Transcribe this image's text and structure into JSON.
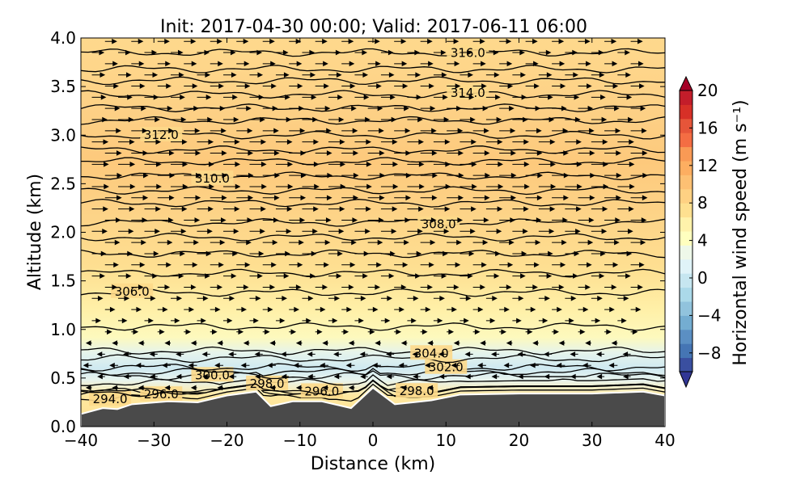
{
  "chart_data": {
    "type": "heatmap",
    "title": "Init: 2017-04-30 00:00; Valid: 2017-06-11 06:00",
    "xlabel": "Distance (km)",
    "ylabel": "Altitude (km)",
    "xlim": [
      -40,
      40
    ],
    "ylim": [
      0.0,
      4.0
    ],
    "xticks": [
      "−40",
      "−30",
      "−20",
      "−10",
      "0",
      "10",
      "20",
      "30",
      "40"
    ],
    "xtick_values": [
      -40,
      -30,
      -20,
      -10,
      0,
      10,
      20,
      30,
      40
    ],
    "yticks": [
      "0.0",
      "0.5",
      "1.0",
      "1.5",
      "2.0",
      "2.5",
      "3.0",
      "3.5",
      "4.0"
    ],
    "ytick_values": [
      0,
      0.5,
      1.0,
      1.5,
      2.0,
      2.5,
      3.0,
      3.5,
      4.0
    ],
    "colorbar": {
      "label": "Horizontal wind speed (m s⁻¹)",
      "range": [
        -10,
        20
      ],
      "extend": "both",
      "ticks": [
        "20",
        "16",
        "12",
        "8",
        "4",
        "0",
        "−4",
        "−8"
      ],
      "tick_values": [
        20,
        16,
        12,
        8,
        4,
        0,
        -4,
        -8
      ],
      "colors": [
        "#313695",
        "#3a4fa0",
        "#4575b4",
        "#5b8fc3",
        "#74add1",
        "#91c3dd",
        "#abd9e9",
        "#c6e6f0",
        "#e0f3f8",
        "#eef8e9",
        "#ffffbf",
        "#fff2ab",
        "#fee090",
        "#fed183",
        "#fdc073",
        "#fdae61",
        "#f99a55",
        "#f46d43",
        "#e65539",
        "#d73027",
        "#c31d2a",
        "#a50026"
      ]
    },
    "wind_profile": [
      [
        0.2,
        2.5
      ],
      [
        0.5,
        -1.5
      ],
      [
        0.7,
        -2.5
      ],
      [
        0.9,
        0.5
      ],
      [
        1.1,
        2.5
      ],
      [
        1.5,
        4.5
      ],
      [
        2.0,
        6.0
      ],
      [
        2.5,
        7.0
      ],
      [
        3.0,
        6.5
      ],
      [
        3.5,
        5.0
      ],
      [
        4.0,
        4.0
      ]
    ],
    "terrain": [
      [
        -40,
        0.13
      ],
      [
        -37,
        0.19
      ],
      [
        -35,
        0.18
      ],
      [
        -33,
        0.23
      ],
      [
        -28,
        0.26
      ],
      [
        -24,
        0.25
      ],
      [
        -20,
        0.32
      ],
      [
        -16,
        0.36
      ],
      [
        -14,
        0.21
      ],
      [
        -11,
        0.26
      ],
      [
        -7,
        0.26
      ],
      [
        -3,
        0.19
      ],
      [
        0,
        0.4
      ],
      [
        3,
        0.23
      ],
      [
        8,
        0.27
      ],
      [
        12,
        0.33
      ],
      [
        20,
        0.34
      ],
      [
        30,
        0.34
      ],
      [
        37,
        0.36
      ],
      [
        40,
        0.32
      ]
    ],
    "contours": [
      {
        "level": 294,
        "alt": 0.29,
        "label": "294.0",
        "label_x": -36
      },
      {
        "level": 296,
        "alt": 0.36,
        "label": "296.0",
        "label_x": -29
      },
      {
        "level": 296,
        "alt": 0.35,
        "label": "296.0",
        "label_x": -7
      },
      {
        "level": 298,
        "alt": 0.45,
        "label": "298.0",
        "label_x": -14.5
      },
      {
        "level": 298,
        "alt": 0.36,
        "label": "298.0",
        "label_x": 6
      },
      {
        "level": 300,
        "alt": 0.52,
        "label": "300.0",
        "label_x": -22
      },
      {
        "level": 301,
        "alt": 0.56
      },
      {
        "level": 302,
        "alt": 0.61,
        "label": "302.0",
        "label_x": 10
      },
      {
        "level": 303,
        "alt": 0.7
      },
      {
        "level": 304,
        "alt": 0.78,
        "label": "304.0",
        "label_x": 8
      },
      {
        "level": 305,
        "alt": 1.03
      },
      {
        "level": 306,
        "alt": 1.38,
        "label": "306.0",
        "label_x": -33
      },
      {
        "level": 306.5,
        "alt": 1.58
      },
      {
        "level": 307,
        "alt": 1.78
      },
      {
        "level": 307.5,
        "alt": 1.95
      },
      {
        "level": 308,
        "alt": 2.1,
        "label": "308.0",
        "label_x": 9
      },
      {
        "level": 308.5,
        "alt": 2.3
      },
      {
        "level": 309,
        "alt": 2.43
      },
      {
        "level": 310,
        "alt": 2.58,
        "label": "310.0",
        "label_x": -22
      },
      {
        "level": 310.5,
        "alt": 2.73
      },
      {
        "level": 311,
        "alt": 2.85
      },
      {
        "level": 312,
        "alt": 3.0,
        "label": "312.0",
        "label_x": -29
      },
      {
        "level": 312.5,
        "alt": 3.15
      },
      {
        "level": 313,
        "alt": 3.28
      },
      {
        "level": 314,
        "alt": 3.42,
        "label": "314.0",
        "label_x": 13
      },
      {
        "level": 314.5,
        "alt": 3.56
      },
      {
        "level": 315,
        "alt": 3.68
      },
      {
        "level": 316,
        "alt": 3.85,
        "label": "316.0",
        "label_x": 13
      }
    ]
  }
}
